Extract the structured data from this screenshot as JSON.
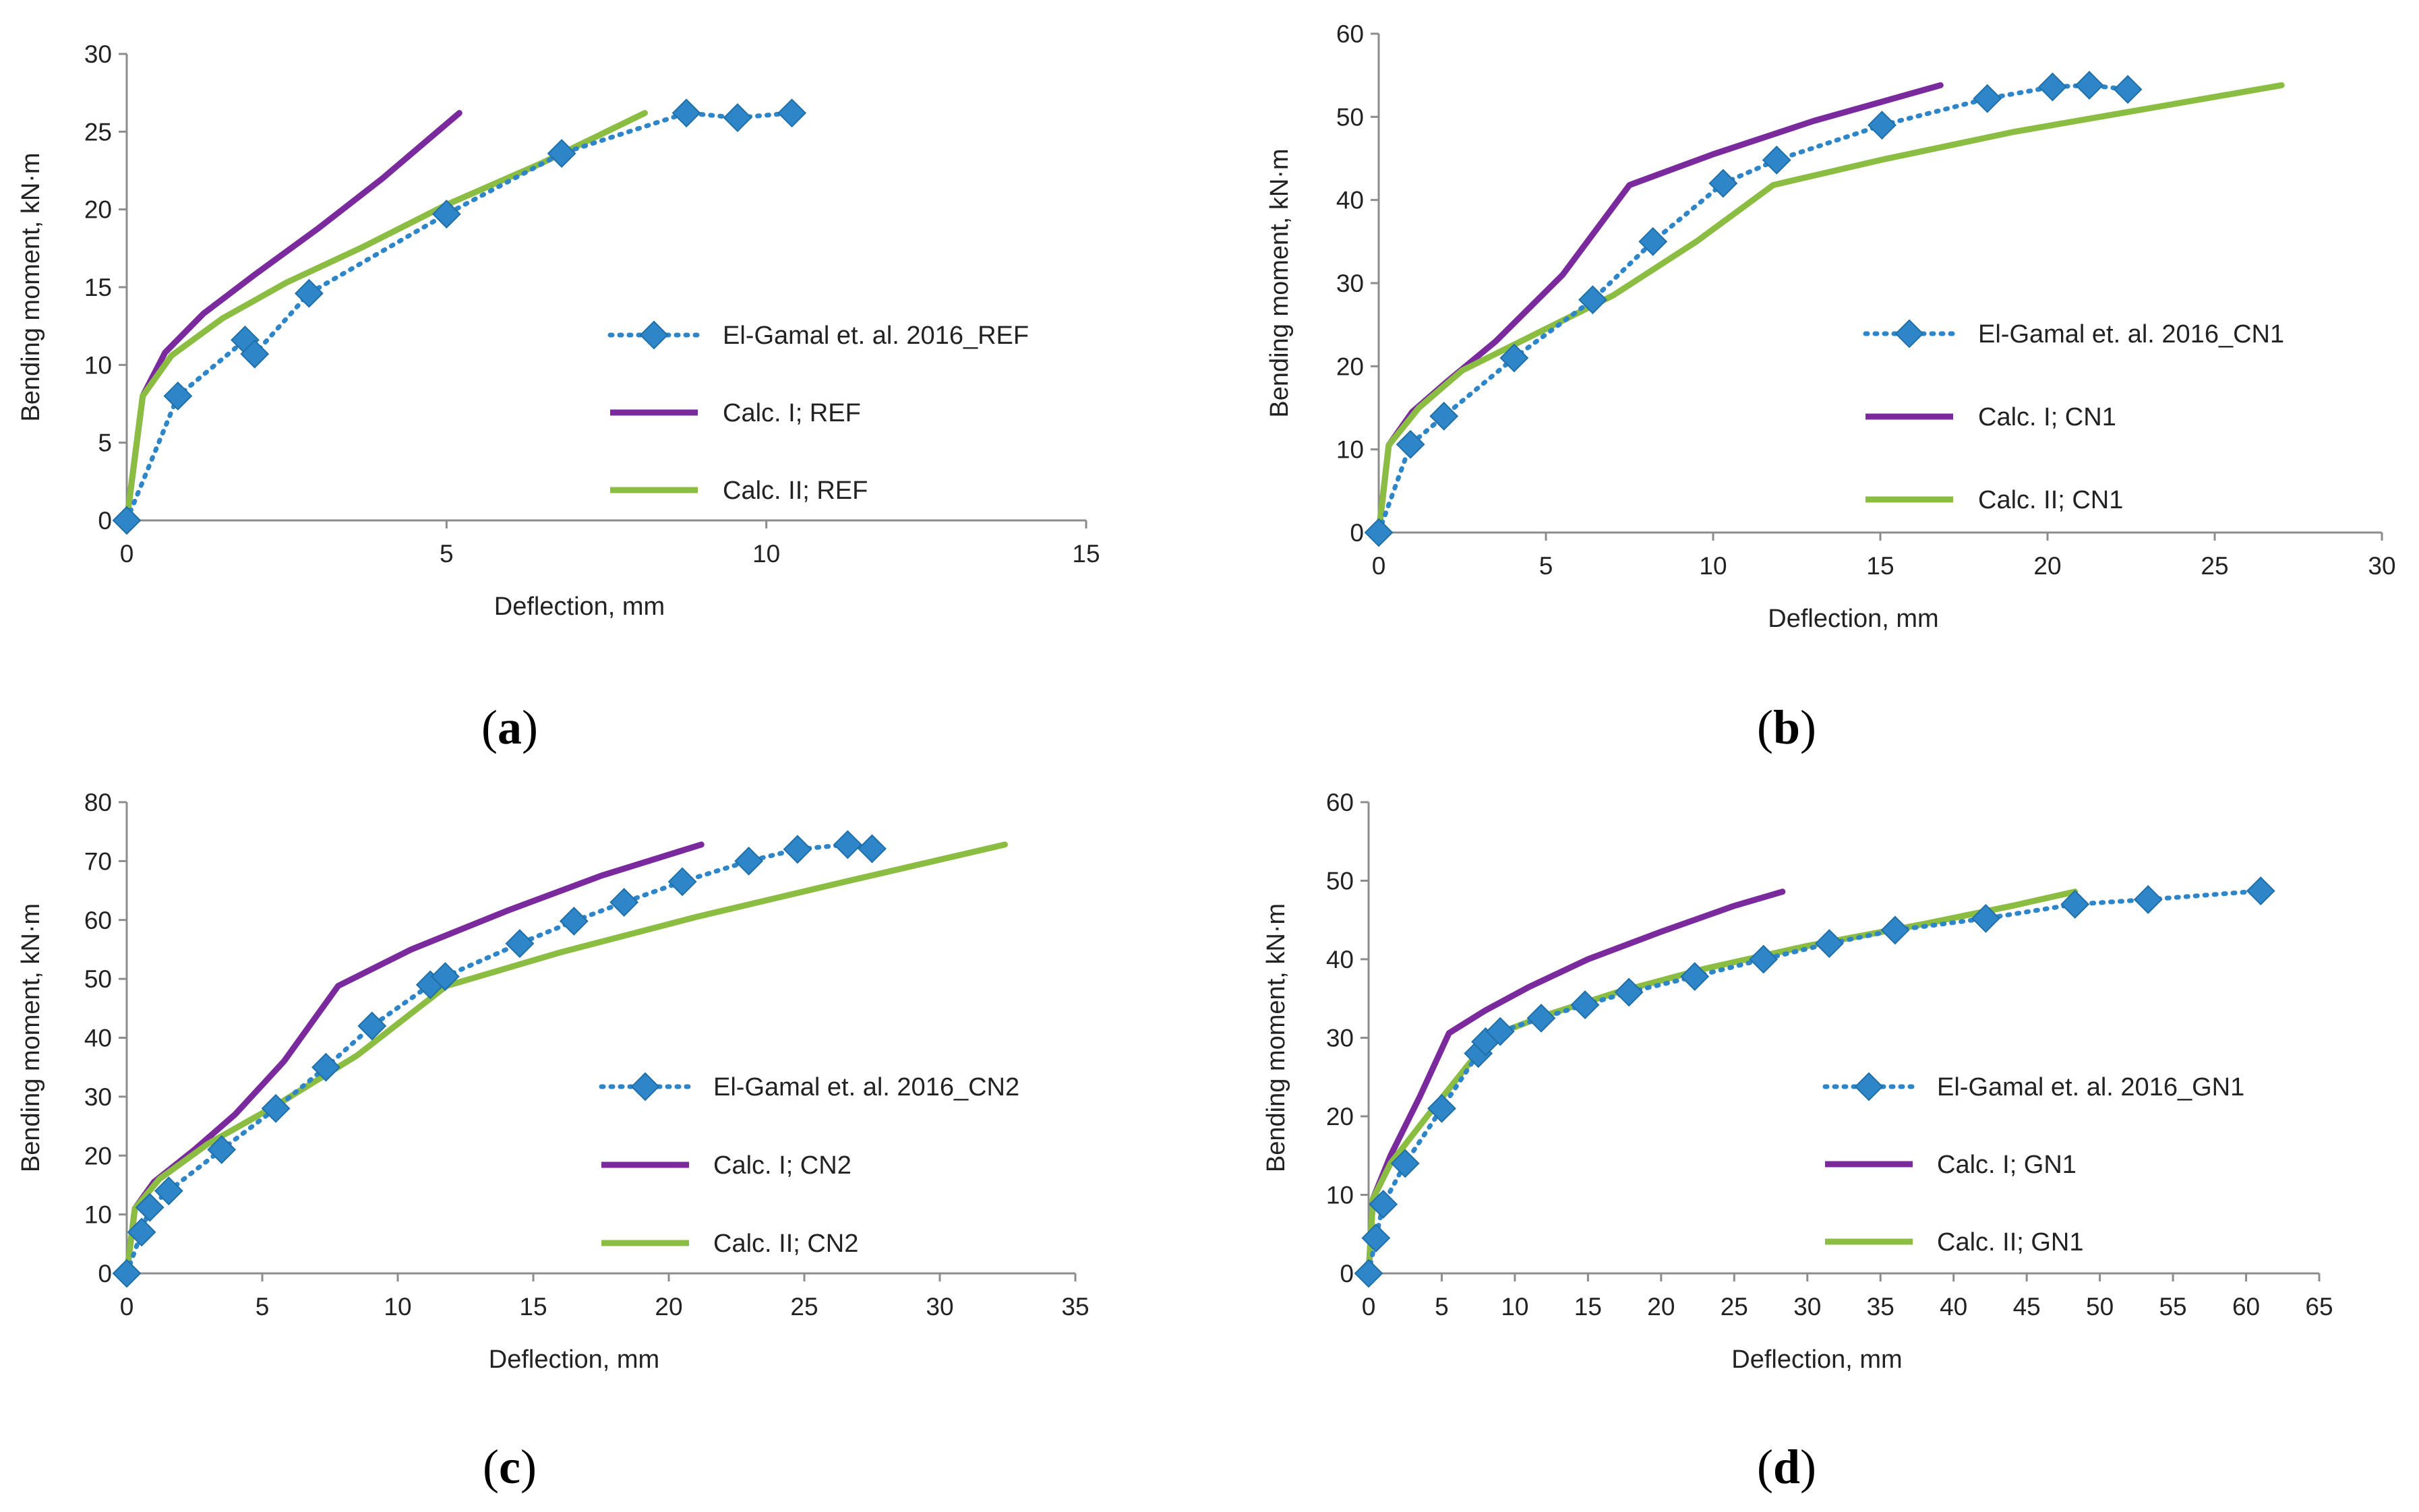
{
  "colors": {
    "experimental": "#2e86c8",
    "calc1": "#7b2a9e",
    "calc2": "#8cbd43",
    "axis": "#8c8c8c",
    "text": "#222222"
  },
  "chart_data": [
    {
      "type": "line",
      "panel_label": "a",
      "xlabel": "Deflection, mm",
      "ylabel": "Bending moment, kN·m",
      "xlim": [
        0,
        15
      ],
      "ylim": [
        0,
        30
      ],
      "xticks": [
        0,
        5,
        10,
        15
      ],
      "yticks": [
        0,
        5,
        10,
        15,
        20,
        25,
        30
      ],
      "grid": false,
      "legend_position": "right",
      "series": [
        {
          "name": "El-Gamal et. al. 2016_REF",
          "style": "dotted-diamond",
          "x": [
            0,
            0.8,
            1.85,
            2.0,
            2.85,
            5.0,
            6.8,
            8.75,
            9.55,
            10.4
          ],
          "y": [
            0,
            8.0,
            11.6,
            10.7,
            14.6,
            19.7,
            23.6,
            26.2,
            25.9,
            26.2
          ]
        },
        {
          "name": "Calc. I; REF",
          "style": "solid",
          "x": [
            0,
            0.25,
            0.6,
            1.2,
            2.0,
            3.0,
            4.0,
            5.2
          ],
          "y": [
            0,
            8.0,
            10.8,
            13.3,
            15.8,
            18.8,
            22.0,
            26.2
          ]
        },
        {
          "name": "Calc. II; REF",
          "style": "solid",
          "x": [
            0,
            0.25,
            0.7,
            1.5,
            2.5,
            3.7,
            5.0,
            6.5,
            8.1
          ],
          "y": [
            0,
            8.0,
            10.6,
            13.0,
            15.3,
            17.6,
            20.3,
            23.0,
            26.2
          ]
        }
      ]
    },
    {
      "type": "line",
      "panel_label": "b",
      "xlabel": "Deflection, mm",
      "ylabel": "Bending moment, kN·m",
      "xlim": [
        0,
        30
      ],
      "ylim": [
        0,
        60
      ],
      "xticks": [
        0,
        5,
        10,
        15,
        20,
        25,
        30
      ],
      "yticks": [
        0,
        10,
        20,
        30,
        40,
        50,
        60
      ],
      "grid": false,
      "legend_position": "right",
      "series": [
        {
          "name": "El-Gamal et. al. 2016_CN1",
          "style": "dotted-diamond",
          "x": [
            0,
            0.95,
            1.95,
            4.05,
            6.4,
            8.2,
            10.3,
            11.9,
            15.05,
            18.2,
            20.15,
            21.25,
            22.4
          ],
          "y": [
            0,
            10.6,
            14.0,
            21.0,
            28.0,
            35.0,
            42.0,
            44.8,
            49.0,
            52.2,
            53.6,
            53.8,
            53.3
          ]
        },
        {
          "name": "Calc. I; CN1",
          "style": "solid",
          "x": [
            0,
            0.3,
            1.0,
            2.0,
            3.5,
            5.5,
            7.5,
            10.0,
            13.0,
            16.8
          ],
          "y": [
            0,
            10.5,
            14.5,
            18.0,
            23.0,
            31.0,
            41.8,
            45.5,
            49.5,
            53.8
          ]
        },
        {
          "name": "Calc. II; CN1",
          "style": "solid",
          "x": [
            0,
            0.3,
            1.2,
            2.5,
            4.5,
            7.0,
            9.5,
            11.8,
            15.0,
            19.0,
            23.0,
            27.0
          ],
          "y": [
            0,
            10.5,
            15.0,
            19.5,
            23.5,
            28.5,
            35.0,
            41.8,
            44.8,
            48.2,
            51.0,
            53.8
          ]
        }
      ]
    },
    {
      "type": "line",
      "panel_label": "c",
      "xlabel": "Deflection, mm",
      "ylabel": "Bending moment, kN·m",
      "xlim": [
        0,
        35
      ],
      "ylim": [
        0,
        80
      ],
      "xticks": [
        0,
        5,
        10,
        15,
        20,
        25,
        30,
        35
      ],
      "yticks": [
        0,
        10,
        20,
        30,
        40,
        50,
        60,
        70,
        80
      ],
      "grid": false,
      "legend_position": "right",
      "series": [
        {
          "name": "El-Gamal et. al. 2016_CN2",
          "style": "dotted-diamond",
          "x": [
            0,
            0.55,
            0.85,
            1.55,
            3.5,
            5.5,
            7.35,
            9.05,
            11.2,
            11.75,
            14.5,
            16.5,
            18.35,
            20.5,
            22.95,
            24.75,
            26.6,
            27.5
          ],
          "y": [
            0,
            7.0,
            11.2,
            14.0,
            21.0,
            28.0,
            35.0,
            42.0,
            49.0,
            50.4,
            56.0,
            59.8,
            63.0,
            66.5,
            70.0,
            72.0,
            72.8,
            72.1
          ]
        },
        {
          "name": "Calc. I; CN2",
          "style": "solid",
          "x": [
            0,
            0.3,
            1.0,
            2.5,
            4.0,
            5.8,
            7.8,
            10.5,
            14.0,
            17.5,
            21.2
          ],
          "y": [
            0,
            11.0,
            15.5,
            21.0,
            27.0,
            36.0,
            48.8,
            55.0,
            61.5,
            67.5,
            72.8
          ]
        },
        {
          "name": "Calc. II; CN2",
          "style": "solid",
          "x": [
            0,
            0.3,
            1.2,
            3.0,
            5.5,
            8.5,
            11.8,
            16.0,
            21.0,
            26.5,
            32.4
          ],
          "y": [
            0,
            11.0,
            16.0,
            22.0,
            28.5,
            37.0,
            48.8,
            54.5,
            60.5,
            66.5,
            72.8
          ]
        }
      ]
    },
    {
      "type": "line",
      "panel_label": "d",
      "xlabel": "Deflection, mm",
      "ylabel": "Bending moment, kN·m",
      "xlim": [
        0,
        65
      ],
      "ylim": [
        0,
        60
      ],
      "xticks": [
        0,
        5,
        10,
        15,
        20,
        25,
        30,
        35,
        40,
        45,
        50,
        55,
        60,
        65
      ],
      "yticks": [
        0,
        10,
        20,
        30,
        40,
        50,
        60
      ],
      "grid": false,
      "legend_position": "right",
      "series": [
        {
          "name": "El-Gamal et. al. 2016_GN1",
          "style": "dotted-diamond",
          "x": [
            0,
            0.5,
            1.0,
            2.5,
            5.0,
            7.5,
            8.0,
            9.0,
            11.8,
            14.8,
            17.8,
            22.3,
            27.0,
            31.5,
            36.0,
            42.2,
            48.3,
            53.3,
            61.0
          ],
          "y": [
            0,
            4.5,
            8.8,
            14.0,
            21.0,
            28.0,
            29.5,
            30.8,
            32.5,
            34.2,
            35.8,
            37.8,
            40.0,
            42.0,
            43.7,
            45.2,
            47.0,
            47.6,
            48.7
          ]
        },
        {
          "name": "Calc. I; GN1",
          "style": "solid",
          "x": [
            0,
            0.3,
            1.5,
            3.5,
            5.5,
            8.0,
            11.0,
            15.0,
            20.0,
            25.0,
            28.3
          ],
          "y": [
            0,
            9.5,
            15.0,
            22.5,
            30.6,
            33.5,
            36.5,
            40.0,
            43.5,
            46.8,
            48.6
          ]
        },
        {
          "name": "Calc. II; GN1",
          "style": "solid",
          "x": [
            0,
            0.3,
            1.5,
            4.0,
            7.0,
            9.5,
            12.0,
            17.0,
            23.0,
            30.0,
            38.0,
            44.0,
            48.3
          ],
          "y": [
            0,
            9.5,
            14.0,
            20.0,
            27.0,
            31.0,
            32.8,
            35.8,
            38.8,
            41.7,
            44.5,
            46.8,
            48.6
          ]
        }
      ]
    }
  ]
}
